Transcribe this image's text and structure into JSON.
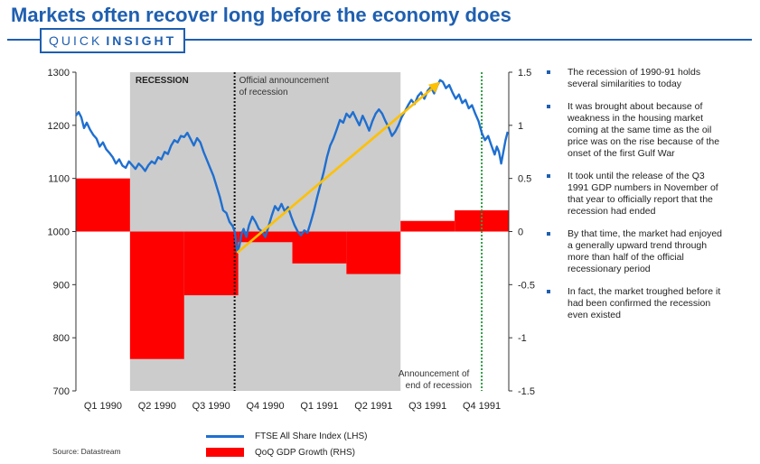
{
  "title": "Markets often recover long before the economy does",
  "badge": {
    "part1": "QUICK",
    "part2": "INSIGHT"
  },
  "source": "Source: Datastream",
  "bullets": [
    "The recession of 1990-91 holds several similarities to today",
    "It was brought about because of weakness in the housing market coming at the same time as the oil price was on the rise because of the onset of the first Gulf War",
    "It took until the release of the Q3 1991 GDP numbers in November of that year to officially report that the recession had ended",
    "By that time, the market had enjoyed a generally upward trend through more than half of the official recessionary period",
    "In fact, the market troughed before it had been confirmed the recession even existed"
  ],
  "colors": {
    "accent": "#1f5fb0",
    "ftse": "#1f6fd0",
    "gdp": "#ff0000",
    "recession": "#cccccc",
    "trend": "#ffc000",
    "end_marker": "#2e9e44"
  },
  "chart_data": {
    "type": "line",
    "x_categories": [
      "Q1 1990",
      "Q2 1990",
      "Q3 1990",
      "Q4 1990",
      "Q1 1991",
      "Q2 1991",
      "Q3 1991",
      "Q4 1991"
    ],
    "left_axis": {
      "ylim": [
        700,
        1300
      ],
      "ticks": [
        "700",
        "800",
        "900",
        "1000",
        "1100",
        "1200",
        "1300"
      ]
    },
    "right_axis": {
      "ylim": [
        -1.5,
        1.5
      ],
      "ticks": [
        "-1.5",
        "-1",
        "-0.5",
        "0",
        "0.5",
        "1",
        "1.5"
      ]
    },
    "recession_shading": {
      "label": "RECESSION",
      "from": "Q2 1990",
      "to": "Q3 1991"
    },
    "annotations": [
      {
        "text": [
          "Official announcement",
          "of recession"
        ],
        "at": "Q4 1990",
        "style": "dotted-black"
      },
      {
        "text": [
          "Announcement of",
          "end of recession"
        ],
        "at": "Q4 1991",
        "style": "dotted-green"
      }
    ],
    "trend_line": {
      "from": {
        "t": 2.98,
        "value": 960
      },
      "to": {
        "t": 6.73,
        "value": 1282
      }
    },
    "series": [
      {
        "name": "FTSE All Share Index (LHS)",
        "axis": "left",
        "type": "line",
        "points": [
          [
            0.0,
            1218
          ],
          [
            0.05,
            1225
          ],
          [
            0.1,
            1215
          ],
          [
            0.15,
            1195
          ],
          [
            0.2,
            1205
          ],
          [
            0.26,
            1192
          ],
          [
            0.32,
            1182
          ],
          [
            0.38,
            1175
          ],
          [
            0.44,
            1160
          ],
          [
            0.5,
            1168
          ],
          [
            0.56,
            1155
          ],
          [
            0.62,
            1148
          ],
          [
            0.68,
            1140
          ],
          [
            0.74,
            1128
          ],
          [
            0.8,
            1136
          ],
          [
            0.86,
            1124
          ],
          [
            0.92,
            1120
          ],
          [
            0.98,
            1132
          ],
          [
            1.04,
            1125
          ],
          [
            1.1,
            1118
          ],
          [
            1.16,
            1128
          ],
          [
            1.22,
            1122
          ],
          [
            1.28,
            1114
          ],
          [
            1.34,
            1125
          ],
          [
            1.4,
            1132
          ],
          [
            1.46,
            1128
          ],
          [
            1.52,
            1140
          ],
          [
            1.58,
            1136
          ],
          [
            1.64,
            1150
          ],
          [
            1.7,
            1146
          ],
          [
            1.76,
            1162
          ],
          [
            1.82,
            1172
          ],
          [
            1.88,
            1168
          ],
          [
            1.94,
            1180
          ],
          [
            2.0,
            1178
          ],
          [
            2.06,
            1186
          ],
          [
            2.12,
            1174
          ],
          [
            2.18,
            1162
          ],
          [
            2.24,
            1176
          ],
          [
            2.3,
            1168
          ],
          [
            2.36,
            1150
          ],
          [
            2.42,
            1135
          ],
          [
            2.48,
            1120
          ],
          [
            2.54,
            1105
          ],
          [
            2.6,
            1085
          ],
          [
            2.66,
            1065
          ],
          [
            2.72,
            1040
          ],
          [
            2.78,
            1035
          ],
          [
            2.84,
            1018
          ],
          [
            2.9,
            1010
          ],
          [
            2.94,
            998
          ],
          [
            2.98,
            962
          ],
          [
            3.02,
            972
          ],
          [
            3.06,
            995
          ],
          [
            3.1,
            1005
          ],
          [
            3.15,
            990
          ],
          [
            3.2,
            1012
          ],
          [
            3.26,
            1028
          ],
          [
            3.32,
            1018
          ],
          [
            3.38,
            1005
          ],
          [
            3.44,
            1000
          ],
          [
            3.5,
            990
          ],
          [
            3.56,
            1010
          ],
          [
            3.62,
            1030
          ],
          [
            3.68,
            1048
          ],
          [
            3.74,
            1040
          ],
          [
            3.8,
            1052
          ],
          [
            3.86,
            1038
          ],
          [
            3.92,
            1046
          ],
          [
            3.98,
            1028
          ],
          [
            4.04,
            1012
          ],
          [
            4.1,
            1000
          ],
          [
            4.16,
            993
          ],
          [
            4.22,
            1002
          ],
          [
            4.28,
            998
          ],
          [
            4.34,
            1018
          ],
          [
            4.4,
            1040
          ],
          [
            4.46,
            1065
          ],
          [
            4.52,
            1088
          ],
          [
            4.58,
            1112
          ],
          [
            4.64,
            1140
          ],
          [
            4.7,
            1162
          ],
          [
            4.76,
            1175
          ],
          [
            4.82,
            1192
          ],
          [
            4.88,
            1210
          ],
          [
            4.94,
            1205
          ],
          [
            5.0,
            1222
          ],
          [
            5.06,
            1215
          ],
          [
            5.12,
            1225
          ],
          [
            5.18,
            1212
          ],
          [
            5.24,
            1200
          ],
          [
            5.3,
            1218
          ],
          [
            5.36,
            1205
          ],
          [
            5.42,
            1190
          ],
          [
            5.48,
            1208
          ],
          [
            5.54,
            1222
          ],
          [
            5.6,
            1230
          ],
          [
            5.66,
            1222
          ],
          [
            5.72,
            1208
          ],
          [
            5.78,
            1196
          ],
          [
            5.84,
            1180
          ],
          [
            5.9,
            1188
          ],
          [
            5.96,
            1200
          ],
          [
            6.02,
            1215
          ],
          [
            6.08,
            1226
          ],
          [
            6.14,
            1238
          ],
          [
            6.2,
            1248
          ],
          [
            6.26,
            1240
          ],
          [
            6.32,
            1255
          ],
          [
            6.38,
            1262
          ],
          [
            6.44,
            1250
          ],
          [
            6.5,
            1265
          ],
          [
            6.56,
            1272
          ],
          [
            6.62,
            1260
          ],
          [
            6.68,
            1275
          ],
          [
            6.73,
            1285
          ],
          [
            6.78,
            1282
          ],
          [
            6.84,
            1270
          ],
          [
            6.9,
            1276
          ],
          [
            6.96,
            1262
          ],
          [
            7.02,
            1250
          ],
          [
            7.08,
            1258
          ],
          [
            7.14,
            1242
          ],
          [
            7.2,
            1248
          ],
          [
            7.26,
            1232
          ],
          [
            7.32,
            1238
          ],
          [
            7.38,
            1222
          ],
          [
            7.44,
            1208
          ],
          [
            7.5,
            1186
          ],
          [
            7.56,
            1172
          ],
          [
            7.62,
            1180
          ],
          [
            7.68,
            1162
          ],
          [
            7.74,
            1145
          ],
          [
            7.78,
            1160
          ],
          [
            7.82,
            1150
          ],
          [
            7.86,
            1128
          ],
          [
            7.9,
            1150
          ],
          [
            7.94,
            1172
          ],
          [
            7.98,
            1188
          ]
        ]
      },
      {
        "name": "QoQ GDP Growth (RHS)",
        "axis": "right",
        "type": "bar",
        "values": [
          0.5,
          -1.2,
          -0.6,
          -0.1,
          -0.3,
          -0.4,
          0.1,
          0.2
        ]
      }
    ]
  }
}
